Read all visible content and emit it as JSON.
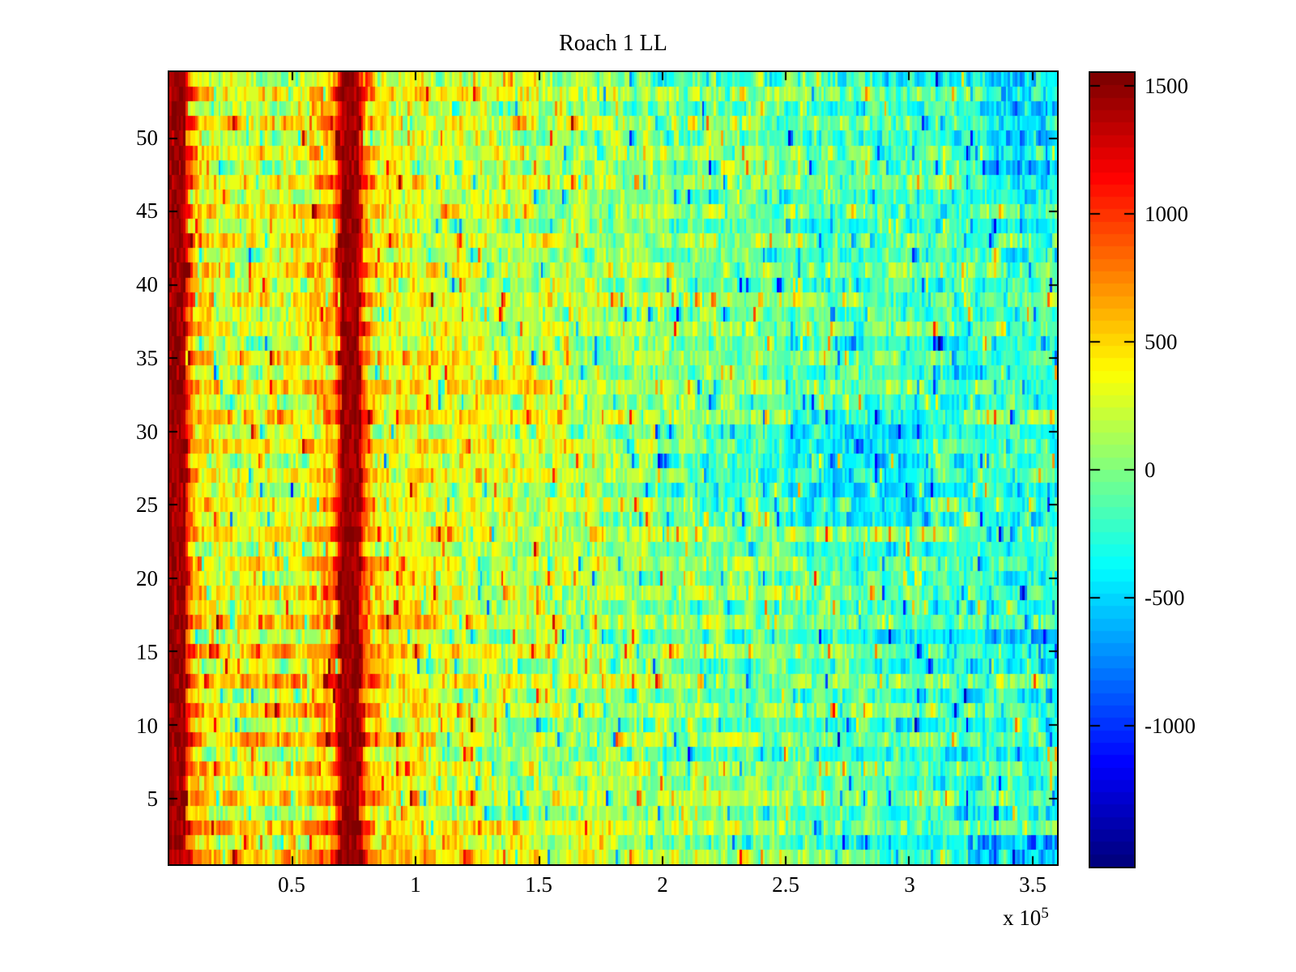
{
  "title": "Roach 1 LL",
  "chart_data": {
    "type": "heatmap",
    "title": "Roach 1 LL",
    "colormap": "jet",
    "x_axis": {
      "tick_labels": [
        "0.5",
        "1",
        "1.5",
        "2",
        "2.5",
        "3",
        "3.5"
      ],
      "tick_values": [
        50000,
        100000,
        150000,
        200000,
        250000,
        300000,
        350000
      ],
      "range": [
        0,
        360000
      ],
      "exponent_prefix": "x 10",
      "exponent_value": "5"
    },
    "y_axis": {
      "tick_labels": [
        "50",
        "45",
        "40",
        "35",
        "30",
        "25",
        "20",
        "15",
        "10",
        "5"
      ],
      "tick_values": [
        50,
        45,
        40,
        35,
        30,
        25,
        20,
        15,
        10,
        5
      ],
      "range": [
        0.5,
        54.5
      ],
      "rows": 54
    },
    "colorbar": {
      "tick_labels": [
        "1500",
        "1000",
        "500",
        "0",
        "-500",
        "-1000"
      ],
      "tick_values": [
        1500,
        1000,
        500,
        0,
        -500,
        -1000
      ],
      "range": [
        -1550,
        1550
      ]
    },
    "render": {
      "seed": 1337,
      "columns": 380,
      "rows": 54,
      "colormap_levels": 64,
      "noise_sigma": 165,
      "noise_autocorr": 0.4,
      "spike_probability": 0.055,
      "spike_min": 320,
      "spike_max": 900,
      "row_offset_base": 55,
      "row_offset_jitter": 75,
      "left_gain": 1.7,
      "left_gain_until": 0.24,
      "x_profile": [
        [
          0.0,
          1480
        ],
        [
          0.008,
          1540
        ],
        [
          0.02,
          1100
        ],
        [
          0.03,
          520
        ],
        [
          0.05,
          330
        ],
        [
          0.1,
          260
        ],
        [
          0.15,
          310
        ],
        [
          0.185,
          650
        ],
        [
          0.193,
          1380
        ],
        [
          0.205,
          1480
        ],
        [
          0.213,
          1380
        ],
        [
          0.222,
          700
        ],
        [
          0.235,
          380
        ],
        [
          0.3,
          230
        ],
        [
          0.4,
          170
        ],
        [
          0.5,
          90
        ],
        [
          0.6,
          10
        ],
        [
          0.7,
          -70
        ],
        [
          0.8,
          -140
        ],
        [
          0.9,
          -190
        ],
        [
          1.0,
          -230
        ]
      ],
      "saturated_bands": [
        [
          0.0,
          0.018
        ],
        [
          0.194,
          0.214
        ]
      ],
      "patches": [
        {
          "x0": 0.7,
          "x1": 0.86,
          "r0": 24,
          "r1": 31,
          "delta": -270
        },
        {
          "x0": 0.55,
          "x1": 0.7,
          "r0": 25,
          "r1": 29,
          "delta": -150
        },
        {
          "x0": 0.9,
          "x1": 1.0,
          "r0": 1,
          "r1": 2,
          "delta": -430
        },
        {
          "x0": 0.92,
          "x1": 1.0,
          "r0": 47,
          "r1": 54,
          "delta": -230
        },
        {
          "x0": 0.78,
          "x1": 1.0,
          "r0": 14,
          "r1": 16,
          "delta": -110
        },
        {
          "x0": 0.28,
          "x1": 0.45,
          "r0": 27,
          "r1": 36,
          "delta": 140
        },
        {
          "x0": 0.08,
          "x1": 0.3,
          "r0": 8,
          "r1": 21,
          "delta": 120
        },
        {
          "x0": 0.0,
          "x1": 0.5,
          "r0": 1,
          "r1": 3,
          "delta": 150
        }
      ]
    }
  }
}
